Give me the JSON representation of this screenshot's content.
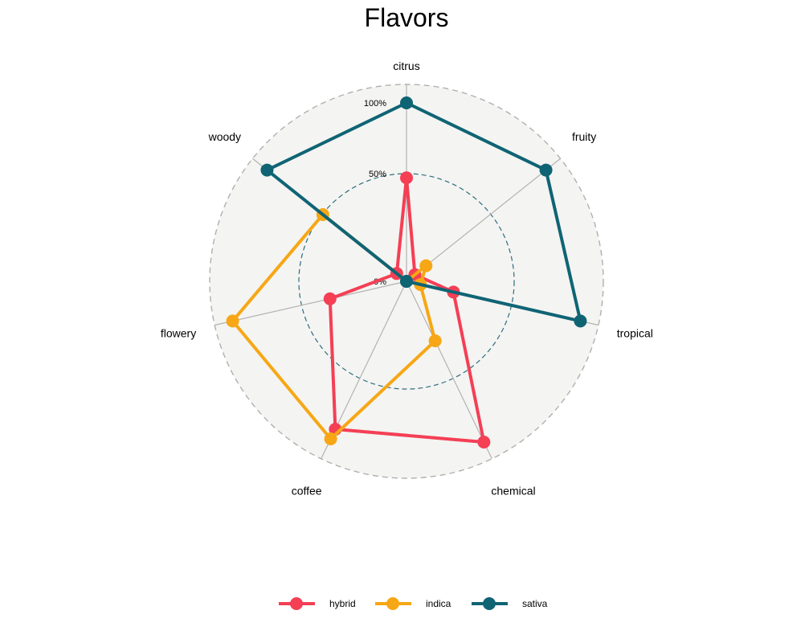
{
  "chart_data": {
    "type": "radar",
    "title": "Flavors",
    "axes": [
      "citrus",
      "fruity",
      "tropical",
      "chemical",
      "coffee",
      "flowery",
      "woody"
    ],
    "ticks": [
      "0%",
      "50%",
      "100%"
    ],
    "ylim": [
      0,
      1
    ],
    "series": [
      {
        "name": "hybrid",
        "color": "#f43f55",
        "values": [
          0.58,
          0.06,
          0.27,
          1.0,
          0.92,
          0.44,
          0.07
        ]
      },
      {
        "name": "indica",
        "color": "#f7a715",
        "values": [
          0.0,
          0.14,
          0.08,
          0.37,
          0.98,
          1.0,
          0.6
        ]
      },
      {
        "name": "sativa",
        "color": "#0f6474",
        "values": [
          1.0,
          1.0,
          1.0,
          0.0,
          0.0,
          0.0,
          1.0
        ]
      }
    ],
    "legend_position": "bottom",
    "grid": true
  }
}
